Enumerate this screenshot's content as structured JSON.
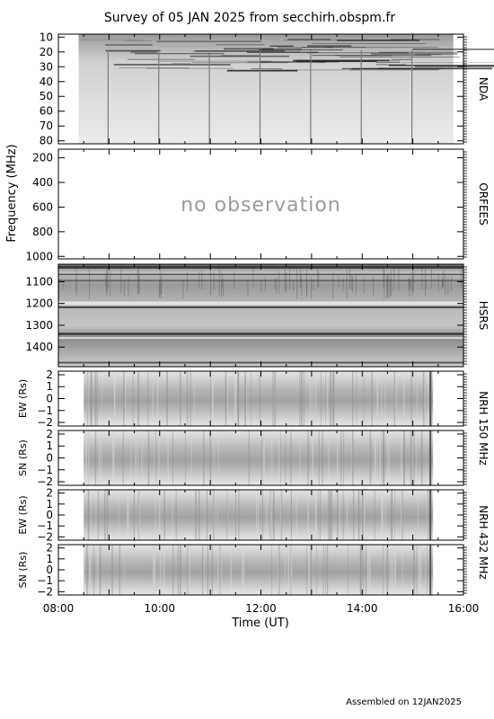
{
  "title": "Survey of 05 JAN 2025 from secchirh.obspm.fr",
  "footer": "Assembled on  12JAN2025",
  "colors": {
    "frame": "#000000",
    "panel_bg": "#c8c8c8",
    "light": "#e2e2e2",
    "dark": "#1a1a1a"
  },
  "chart_data": {
    "type": "heatmap",
    "x_axis": {
      "label": "Time (UT)",
      "ticks": [
        "08:00",
        "10:00",
        "12:00",
        "14:00",
        "16:00"
      ],
      "range_hours": [
        8,
        16
      ]
    },
    "shared_ylabel": "Frequency (MHz)",
    "panels": [
      {
        "id": "nda",
        "right_label": "NDA",
        "ticks": [
          "10",
          "20",
          "30",
          "40",
          "50",
          "60",
          "70",
          "80"
        ],
        "y_range": [
          8,
          82
        ],
        "data_hours": [
          8.4,
          15.8
        ],
        "status": "data"
      },
      {
        "id": "orfees",
        "right_label": "ORFEES",
        "ticks": [
          "200",
          "400",
          "600",
          "800",
          "1000"
        ],
        "y_range": [
          130,
          1020
        ],
        "status": "no_data",
        "message": "no observation"
      },
      {
        "id": "hsrs",
        "right_label": "HSRS",
        "ticks": [
          "1100",
          "1200",
          "1300",
          "1400"
        ],
        "y_range": [
          1020,
          1490
        ],
        "data_hours": [
          8.0,
          16.0
        ],
        "status": "data"
      },
      {
        "id": "nrh150_ew",
        "ylabel": "EW (Rs)",
        "ticks": [
          "2",
          "1",
          "0",
          "−1",
          "−2"
        ],
        "y_range": [
          -2.3,
          2.3
        ],
        "data_hours": [
          8.5,
          15.4
        ],
        "status": "data"
      },
      {
        "id": "nrh150_sn",
        "ylabel": "SN (Rs)",
        "ticks": [
          "2",
          "1",
          "0",
          "−1",
          "−2"
        ],
        "y_range": [
          -2.3,
          2.3
        ],
        "data_hours": [
          8.5,
          15.4
        ],
        "status": "data"
      },
      {
        "id": "nrh432_ew",
        "ylabel": "EW (Rs)",
        "ticks": [
          "2",
          "1",
          "0",
          "−1",
          "−2"
        ],
        "y_range": [
          -2.3,
          2.3
        ],
        "data_hours": [
          8.5,
          15.4
        ],
        "status": "data"
      },
      {
        "id": "nrh432_sn",
        "ylabel": "SN (Rs)",
        "ticks": [
          "2",
          "1",
          "0",
          "−1",
          "−2"
        ],
        "y_range": [
          -2.3,
          2.3
        ],
        "data_hours": [
          8.5,
          15.4
        ],
        "status": "data"
      }
    ],
    "group_labels": [
      {
        "label": "NRH 150 MHz",
        "panels": [
          "nrh150_ew",
          "nrh150_sn"
        ]
      },
      {
        "label": "NRH 432 MHz",
        "panels": [
          "nrh432_ew",
          "nrh432_sn"
        ]
      }
    ]
  }
}
